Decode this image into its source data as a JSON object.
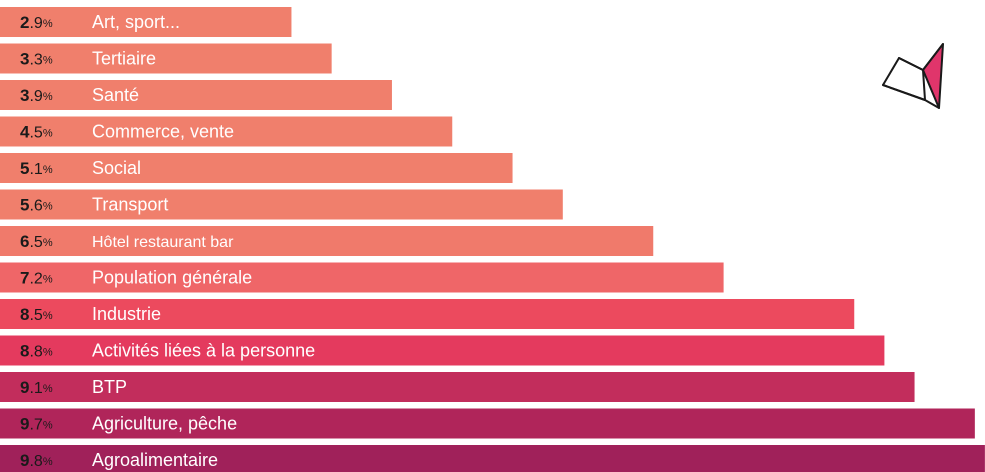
{
  "chart_data": {
    "type": "bar",
    "orientation": "horizontal",
    "categories": [
      "Art, sport...",
      "Tertiaire",
      "Santé",
      "Commerce, vente",
      "Social",
      "Transport",
      "Hôtel restaurant bar",
      "Population générale",
      "Industrie",
      "Activités liées à la personne",
      "BTP",
      "Agriculture, pêche",
      "Agroalimentaire"
    ],
    "values": [
      2.9,
      3.3,
      3.9,
      4.5,
      5.1,
      5.6,
      6.5,
      7.2,
      8.5,
      8.8,
      9.1,
      9.7,
      9.8
    ],
    "value_labels": [
      {
        "int": "2",
        "dec": ".9",
        "unit": "%"
      },
      {
        "int": "3",
        "dec": ".3",
        "unit": "%"
      },
      {
        "int": "3",
        "dec": ".9",
        "unit": "%"
      },
      {
        "int": "4",
        "dec": ".5",
        "unit": "%"
      },
      {
        "int": "5",
        "dec": ".1",
        "unit": "%"
      },
      {
        "int": "5",
        "dec": ".6",
        "unit": "%"
      },
      {
        "int": "6",
        "dec": ".5",
        "unit": "%"
      },
      {
        "int": "7",
        "dec": ".2",
        "unit": "%"
      },
      {
        "int": "8",
        "dec": ".5",
        "unit": "%"
      },
      {
        "int": "8",
        "dec": ".8",
        "unit": "%"
      },
      {
        "int": "9",
        "dec": ".1",
        "unit": "%"
      },
      {
        "int": "9",
        "dec": ".7",
        "unit": "%"
      },
      {
        "int": "9",
        "dec": ".8",
        "unit": "%"
      }
    ],
    "bar_colors": [
      "#f07f6c",
      "#f07f6c",
      "#f07f6c",
      "#f07f6c",
      "#f07f6c",
      "#f07f6c",
      "#f07a6b",
      "#ef6668",
      "#ec4a5e",
      "#e43a5e",
      "#c22d5c",
      "#b0255a",
      "#a0215a"
    ],
    "title": "",
    "xlabel": "",
    "ylabel": "",
    "grid": false,
    "legend": "none"
  },
  "decoration": {
    "icon": "paper-plane-icon",
    "colors": {
      "outline": "#1a1a1a",
      "accent": "#e0356b"
    }
  }
}
